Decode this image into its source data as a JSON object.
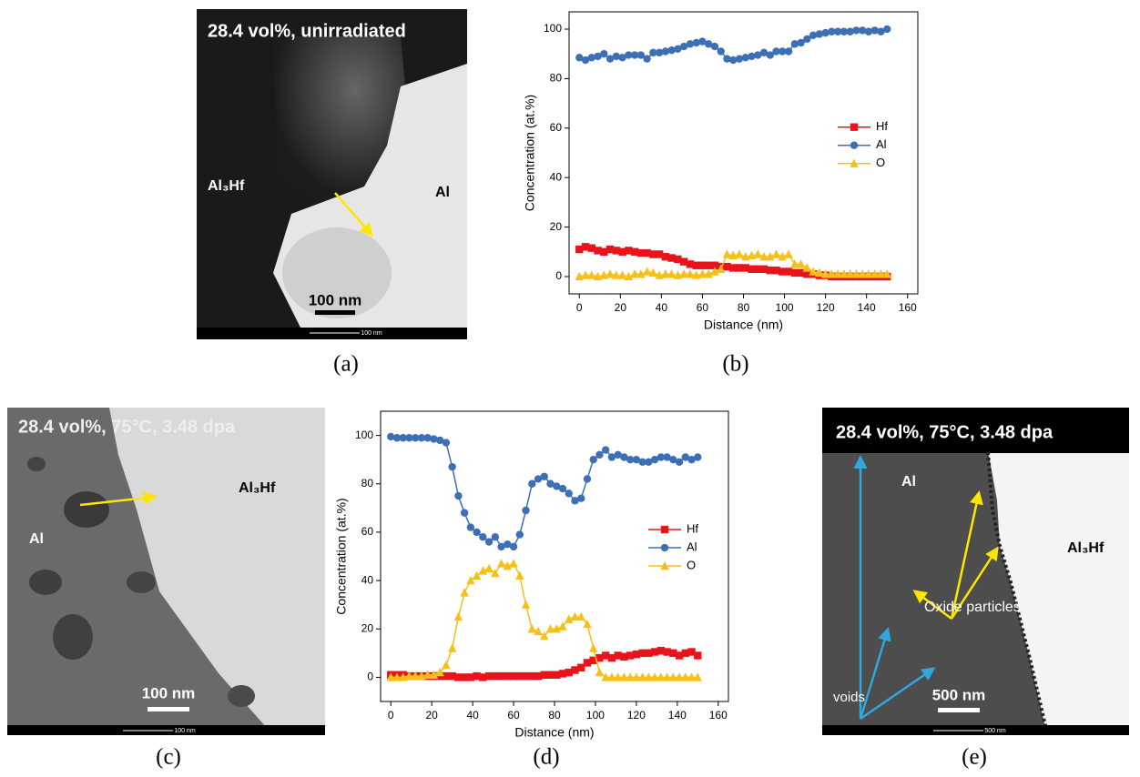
{
  "chart_data": [
    {
      "type": "line",
      "caption": "(b)",
      "x_label": "Distance (nm)",
      "y_label": "Concentration (at.%)",
      "x": [
        0,
        3,
        6,
        9,
        12,
        15,
        18,
        21,
        24,
        27,
        30,
        33,
        36,
        39,
        42,
        45,
        48,
        51,
        54,
        57,
        60,
        63,
        66,
        69,
        72,
        75,
        78,
        81,
        84,
        87,
        90,
        93,
        96,
        99,
        102,
        105,
        108,
        111,
        114,
        117,
        120,
        123,
        126,
        129,
        132,
        135,
        138,
        141,
        144,
        147,
        150
      ],
      "series": [
        {
          "name": "Hf",
          "color": "#e8141b",
          "marker": "square",
          "values": [
            11,
            12,
            11.5,
            10.5,
            10,
            11,
            10.5,
            10,
            10.5,
            10,
            9.5,
            9.5,
            9,
            9,
            8,
            7.5,
            7,
            6,
            5,
            4.5,
            4.5,
            4.5,
            4.5,
            4,
            4,
            3.5,
            3.5,
            3.5,
            3,
            3,
            3,
            2.5,
            2.5,
            2,
            2,
            1.5,
            1.5,
            1,
            1,
            0.5,
            0.5,
            0,
            0,
            0,
            0,
            0,
            0,
            0,
            0,
            0,
            0
          ]
        },
        {
          "name": "Al",
          "color": "#3c6fb6",
          "marker": "circle",
          "values": [
            88.5,
            87.5,
            88.5,
            89,
            90,
            88,
            89,
            88.5,
            89.5,
            89.5,
            89.5,
            88,
            90.5,
            90.5,
            91,
            91.5,
            92,
            93,
            94,
            94.5,
            95,
            94,
            93,
            91,
            88,
            87.5,
            88,
            88.5,
            89,
            89.5,
            90.5,
            89.5,
            91,
            91,
            91,
            94,
            94.5,
            96,
            97.5,
            98,
            98.5,
            99,
            99,
            99,
            99,
            99.5,
            99.5,
            99,
            99.5,
            99,
            100
          ]
        },
        {
          "name": "O",
          "color": "#f6c01a",
          "marker": "triangle",
          "values": [
            0,
            0.5,
            0.5,
            0,
            0.5,
            1,
            0.5,
            0.5,
            0,
            1,
            1,
            2,
            1.5,
            0.5,
            1,
            1,
            0.5,
            1,
            1,
            0.5,
            1,
            1,
            2,
            3,
            9,
            8.5,
            9,
            8,
            8.5,
            9,
            8,
            8,
            9,
            8,
            9,
            5,
            5,
            3.5,
            2,
            1.5,
            1,
            1,
            1,
            1,
            1,
            1,
            1,
            1,
            1,
            1,
            1
          ]
        }
      ],
      "xlim": [
        -5,
        165
      ],
      "xticks": [
        0,
        20,
        40,
        60,
        80,
        100,
        120,
        140,
        160
      ],
      "ylim": [
        -7,
        107
      ],
      "yticks": [
        0,
        20,
        40,
        60,
        80,
        100
      ],
      "grid": false,
      "legend": "upper right"
    },
    {
      "type": "line",
      "caption": "(d)",
      "x_label": "Distance (nm)",
      "y_label": "Concentration (at.%)",
      "x": [
        0,
        3,
        6,
        9,
        12,
        15,
        18,
        21,
        24,
        27,
        30,
        33,
        36,
        39,
        42,
        45,
        48,
        51,
        54,
        57,
        60,
        63,
        66,
        69,
        72,
        75,
        78,
        81,
        84,
        87,
        90,
        93,
        96,
        99,
        102,
        105,
        108,
        111,
        114,
        117,
        120,
        123,
        126,
        129,
        132,
        135,
        138,
        141,
        144,
        147,
        150
      ],
      "series": [
        {
          "name": "Hf",
          "color": "#e8141b",
          "marker": "square",
          "values": [
            1,
            1,
            1,
            0.5,
            0.5,
            0.5,
            0.5,
            0.5,
            0.5,
            0.5,
            0.5,
            0,
            0,
            0,
            0.5,
            0,
            0.5,
            0.5,
            0.5,
            0.5,
            0.5,
            0.5,
            0.5,
            0.5,
            0.5,
            1,
            1,
            1,
            1.5,
            2,
            3,
            4,
            6,
            7,
            8,
            9,
            8,
            9,
            8.5,
            9,
            9.5,
            10,
            10,
            10.5,
            11,
            10.5,
            10,
            9,
            10,
            10.5,
            9
          ]
        },
        {
          "name": "Al",
          "color": "#3c6fb6",
          "marker": "circle",
          "values": [
            99.5,
            99,
            99,
            99,
            99,
            99,
            99,
            98.5,
            98,
            97,
            87,
            75,
            68,
            62,
            60,
            58,
            56,
            58,
            54,
            55,
            54,
            59,
            69,
            80,
            82,
            83,
            80,
            79,
            78,
            76,
            73,
            74,
            82,
            90,
            92,
            94,
            91,
            92,
            91,
            90,
            90,
            89,
            89,
            90,
            91,
            91,
            90,
            89,
            91,
            90,
            91
          ]
        },
        {
          "name": "O",
          "color": "#f6c01a",
          "marker": "triangle",
          "values": [
            0,
            0,
            0,
            0.5,
            0.5,
            0.5,
            1,
            1,
            2,
            5,
            12,
            25,
            35,
            40,
            42,
            44,
            45,
            43,
            47,
            46,
            47,
            42,
            30,
            20,
            19,
            17,
            20,
            20,
            21,
            24,
            25,
            25,
            22,
            12,
            2,
            0,
            0,
            0,
            0,
            0,
            0,
            0,
            0,
            0,
            0,
            0,
            0,
            0,
            0,
            0,
            0
          ]
        }
      ],
      "xlim": [
        -5,
        165
      ],
      "xticks": [
        0,
        20,
        40,
        60,
        80,
        100,
        120,
        140,
        160
      ],
      "ylim": [
        -10,
        110
      ],
      "yticks": [
        0,
        20,
        40,
        60,
        80,
        100
      ],
      "grid": false,
      "legend": "upper right"
    }
  ],
  "images": [
    {
      "title": "28.4 vol%, unirradiated",
      "phase_left": "Al₃Hf",
      "phase_right": "Al",
      "scale_bar": "100 nm",
      "scale_footer": "100 nm",
      "caption": "(a)"
    },
    {
      "title": "28.4 vol%, 75°C, 3.48 dpa",
      "phase_right": "Al₃Hf",
      "phase_left": "Al",
      "scale_bar": "100 nm",
      "scale_footer": "100 nm",
      "caption": "(c)"
    },
    {
      "title": "28.4 vol%, 75°C, 3.48 dpa",
      "phase_left": "Al",
      "phase_right": "Al₃Hf",
      "particles": "Oxide particles",
      "voids": "voids",
      "scale_bar": "500 nm",
      "scale_footer": "500 nm",
      "caption": "(e)"
    }
  ]
}
